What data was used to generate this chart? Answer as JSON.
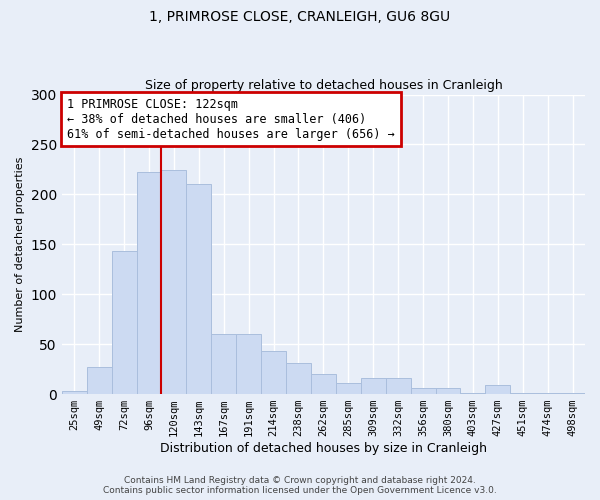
{
  "title": "1, PRIMROSE CLOSE, CRANLEIGH, GU6 8GU",
  "subtitle": "Size of property relative to detached houses in Cranleigh",
  "xlabel": "Distribution of detached houses by size in Cranleigh",
  "ylabel": "Number of detached properties",
  "bar_values": [
    3,
    27,
    143,
    222,
    224,
    210,
    60,
    60,
    43,
    31,
    20,
    11,
    16,
    16,
    6,
    6,
    1,
    9,
    1,
    1,
    1
  ],
  "categories": [
    "25sqm",
    "49sqm",
    "72sqm",
    "96sqm",
    "120sqm",
    "143sqm",
    "167sqm",
    "191sqm",
    "214sqm",
    "238sqm",
    "262sqm",
    "285sqm",
    "309sqm",
    "332sqm",
    "356sqm",
    "380sqm",
    "403sqm",
    "427sqm",
    "451sqm",
    "474sqm",
    "498sqm"
  ],
  "bar_color": "#ccdaf2",
  "bar_edge_color": "#aabedd",
  "vline_color": "#cc0000",
  "vline_x_index": 4,
  "ylim": [
    0,
    300
  ],
  "yticks": [
    0,
    50,
    100,
    150,
    200,
    250,
    300
  ],
  "annotation_title": "1 PRIMROSE CLOSE: 122sqm",
  "annotation_line1": "← 38% of detached houses are smaller (406)",
  "annotation_line2": "61% of semi-detached houses are larger (656) →",
  "annotation_box_color": "#ffffff",
  "annotation_box_edge": "#cc0000",
  "footnote1": "Contains HM Land Registry data © Crown copyright and database right 2024.",
  "footnote2": "Contains public sector information licensed under the Open Government Licence v3.0.",
  "background_color": "#e8eef8",
  "plot_bg_color": "#e8eef8",
  "grid_color": "#ffffff",
  "title_fontsize": 10,
  "subtitle_fontsize": 9,
  "ylabel_fontsize": 8,
  "xlabel_fontsize": 9,
  "tick_fontsize": 7.5,
  "annotation_fontsize": 8.5
}
